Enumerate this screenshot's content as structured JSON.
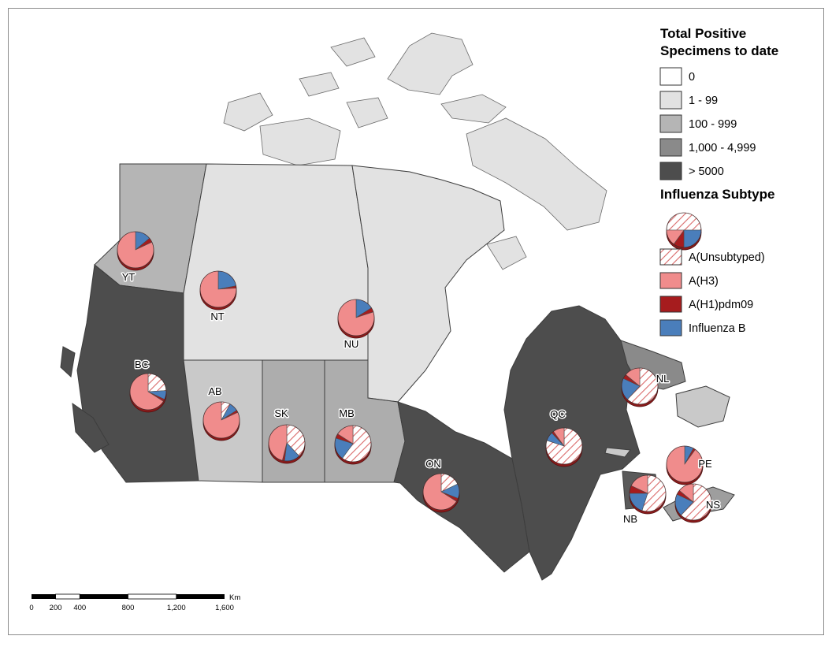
{
  "specimens_legend": {
    "title_line1": "Total Positive",
    "title_line2": "Specimens to date",
    "classes": [
      {
        "label": "0",
        "color": "#FFFFFF"
      },
      {
        "label": "1 - 99",
        "color": "#E2E2E2"
      },
      {
        "label": "100 - 999",
        "color": "#B5B5B5"
      },
      {
        "label": "1,000 - 4,999",
        "color": "#8A8A8A"
      },
      {
        "label": "> 5000",
        "color": "#4D4D4D"
      }
    ]
  },
  "subtype_legend": {
    "title": "Influenza Subtype",
    "items": [
      {
        "label": "A(Unsubtyped)",
        "fill": "hatch"
      },
      {
        "label": "A(H3)",
        "fill": "#F08C8C"
      },
      {
        "label": "A(H1)pdm09",
        "fill": "#A61C1E"
      },
      {
        "label": "Influenza B",
        "fill": "#4A7EBB"
      }
    ],
    "example_pie": {
      "a_unsubtyped": 50,
      "a_h3": 15,
      "a_h1pdm09": 10,
      "influenza_b": 25
    }
  },
  "subtype_colors": {
    "a_unsubtyped_hatch_line": "#D96A6A",
    "a_h3": "#F08C8C",
    "a_h1pdm09": "#A61C1E",
    "influenza_b": "#4A7EBB",
    "pie_base_rim": "#8B1A1A"
  },
  "scalebar": {
    "labels": [
      "0",
      "200",
      "400",
      "800",
      "1,200",
      "1,600"
    ],
    "unit": "Km"
  },
  "regions": {
    "YT": {
      "label": "YT",
      "fill": "#B5B5B5",
      "pie": {
        "a_unsubtyped": 0,
        "a_h3": 82,
        "a_h1pdm09": 4,
        "influenza_b": 14
      }
    },
    "NT": {
      "label": "NT",
      "fill": "#E2E2E2",
      "pie": {
        "a_unsubtyped": 0,
        "a_h3": 76,
        "a_h1pdm09": 2,
        "influenza_b": 22
      }
    },
    "NU": {
      "label": "NU",
      "fill": "#E2E2E2",
      "pie": {
        "a_unsubtyped": 0,
        "a_h3": 80,
        "a_h1pdm09": 4,
        "influenza_b": 16
      }
    },
    "BC": {
      "label": "BC",
      "fill": "#4D4D4D",
      "pie": {
        "a_unsubtyped": 24,
        "a_h3": 66,
        "a_h1pdm09": 2,
        "influenza_b": 8
      }
    },
    "AB": {
      "label": "AB",
      "fill": "#C9C9C9",
      "pie": {
        "a_unsubtyped": 8,
        "a_h3": 82,
        "a_h1pdm09": 2,
        "influenza_b": 8
      }
    },
    "SK": {
      "label": "SK",
      "fill": "#ADADAD",
      "pie": {
        "a_unsubtyped": 38,
        "a_h3": 46,
        "a_h1pdm09": 2,
        "influenza_b": 14
      }
    },
    "MB": {
      "label": "MB",
      "fill": "#ADADAD",
      "pie": {
        "a_unsubtyped": 60,
        "a_h3": 16,
        "a_h1pdm09": 4,
        "influenza_b": 20
      }
    },
    "ON": {
      "label": "ON",
      "fill": "#4D4D4D",
      "pie": {
        "a_unsubtyped": 18,
        "a_h3": 66,
        "a_h1pdm09": 3,
        "influenza_b": 13
      }
    },
    "QC": {
      "label": "QC",
      "fill": "#4D4D4D",
      "pie": {
        "a_unsubtyped": 80,
        "a_h3": 10,
        "a_h1pdm09": 2,
        "influenza_b": 8
      }
    },
    "NL": {
      "label": "NL",
      "fill": "#8A8A8A",
      "fill_island": "#C9C9C9",
      "pie": {
        "a_unsubtyped": 62,
        "a_h3": 14,
        "a_h1pdm09": 4,
        "influenza_b": 20
      }
    },
    "PE": {
      "label": "PE",
      "fill": "#C9C9C9",
      "pie": {
        "a_unsubtyped": 0,
        "a_h3": 90,
        "a_h1pdm09": 2,
        "influenza_b": 8
      }
    },
    "NB": {
      "label": "NB",
      "fill": "#5A5A5A",
      "pie": {
        "a_unsubtyped": 55,
        "a_h3": 18,
        "a_h1pdm09": 7,
        "influenza_b": 20
      }
    },
    "NS": {
      "label": "NS",
      "fill": "#9E9E9E",
      "pie": {
        "a_unsubtyped": 62,
        "a_h3": 14,
        "a_h1pdm09": 4,
        "influenza_b": 20
      }
    }
  },
  "map": {
    "ocean_color": "#FFFFFF",
    "island_fill": "#E2E2E2",
    "small_island_fill": "#C9C9C9",
    "border_color": "#3D3D3D"
  }
}
